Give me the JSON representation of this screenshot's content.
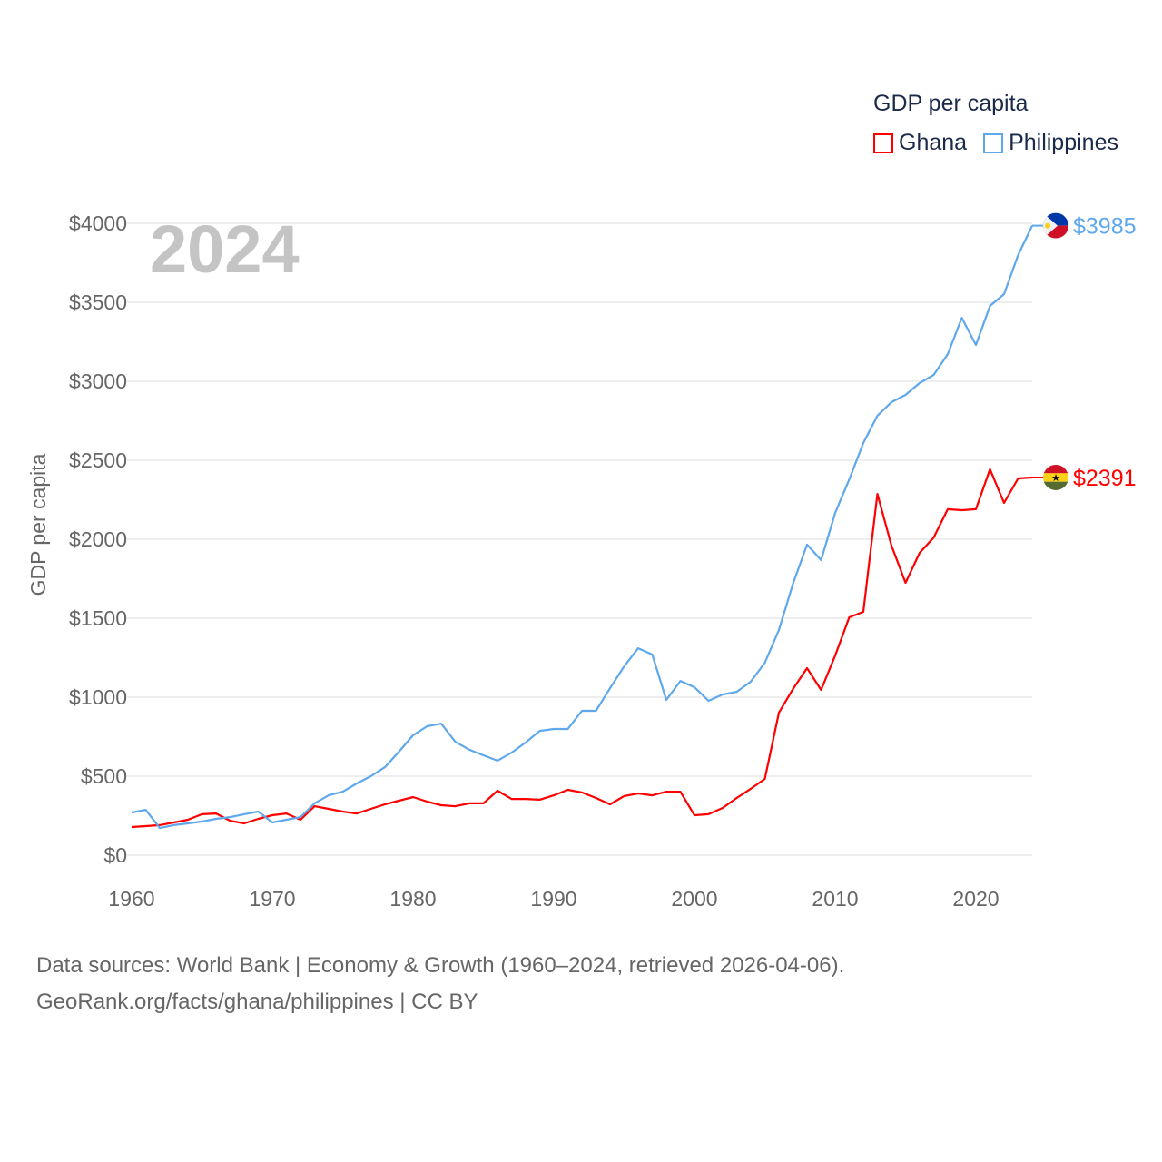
{
  "chart_data": {
    "type": "line",
    "title": "GDP per capita",
    "year_label": "2024",
    "xlabel": "",
    "ylabel": "GDP per capita",
    "xlim": [
      1960,
      2024
    ],
    "ylim": [
      0,
      4000
    ],
    "x_ticks": [
      1960,
      1970,
      1980,
      1990,
      2000,
      2010,
      2020
    ],
    "y_ticks": [
      0,
      500,
      1000,
      1500,
      2000,
      2500,
      3000,
      3500,
      4000
    ],
    "y_tick_labels": [
      "$0",
      "$500",
      "$1000",
      "$1500",
      "$2000",
      "$2500",
      "$3000",
      "$3500",
      "$4000"
    ],
    "grid": true,
    "legend_position": "top-right",
    "x": [
      1960,
      1961,
      1962,
      1963,
      1964,
      1965,
      1966,
      1967,
      1968,
      1969,
      1970,
      1971,
      1972,
      1973,
      1974,
      1975,
      1976,
      1977,
      1978,
      1979,
      1980,
      1981,
      1982,
      1983,
      1984,
      1985,
      1986,
      1987,
      1988,
      1989,
      1990,
      1991,
      1992,
      1993,
      1994,
      1995,
      1996,
      1997,
      1998,
      1999,
      2000,
      2001,
      2002,
      2003,
      2004,
      2005,
      2006,
      2007,
      2008,
      2009,
      2010,
      2011,
      2012,
      2013,
      2014,
      2015,
      2016,
      2017,
      2018,
      2019,
      2020,
      2021,
      2022,
      2023,
      2024
    ],
    "series": [
      {
        "name": "Ghana",
        "color": "#ff0000",
        "end_label": "$2391",
        "flag": "ghana-flag",
        "values": [
          178,
          184,
          190,
          207,
          224,
          259,
          264,
          218,
          201,
          230,
          253,
          264,
          224,
          310,
          293,
          276,
          264,
          293,
          322,
          345,
          368,
          339,
          316,
          310,
          328,
          328,
          408,
          356,
          356,
          351,
          379,
          414,
          397,
          362,
          322,
          374,
          391,
          379,
          402,
          402,
          253,
          259,
          299,
          362,
          420,
          483,
          902,
          1052,
          1184,
          1046,
          1264,
          1506,
          1540,
          2287,
          1960,
          1724,
          1914,
          2011,
          2190,
          2184,
          2190,
          2443,
          2230,
          2385,
          2391
        ]
      },
      {
        "name": "Philippines",
        "color": "#5fa8ec",
        "end_label": "$3985",
        "flag": "philippines-flag",
        "values": [
          270,
          287,
          172,
          190,
          201,
          213,
          230,
          241,
          259,
          276,
          207,
          224,
          241,
          328,
          379,
          402,
          454,
          500,
          557,
          655,
          759,
          816,
          833,
          718,
          667,
          632,
          598,
          649,
          713,
          787,
          799,
          799,
          914,
          914,
          1057,
          1195,
          1310,
          1270,
          983,
          1103,
          1063,
          977,
          1017,
          1034,
          1098,
          1218,
          1425,
          1718,
          1966,
          1868,
          2167,
          2379,
          2609,
          2782,
          2868,
          2914,
          2989,
          3040,
          3172,
          3402,
          3230,
          3477,
          3552,
          3799,
          3985
        ]
      }
    ]
  },
  "footer": {
    "line1": "Data sources: World Bank | Economy & Growth (1960–2024, retrieved 2026-04-06).",
    "line2": "GeoRank.org/facts/ghana/philippines | CC BY"
  }
}
